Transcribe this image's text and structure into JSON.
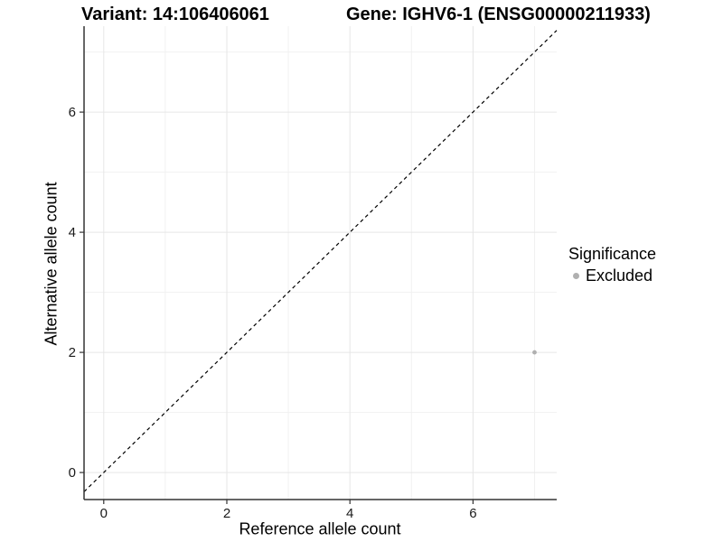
{
  "chart_data": {
    "type": "scatter",
    "titles": {
      "left": "Variant: 14:106406061",
      "right": "Gene: IGHV6-1 (ENSG00000211933)"
    },
    "xlabel": "Reference allele count",
    "ylabel": "Alternative allele count",
    "xlim": [
      -0.32,
      7.36
    ],
    "ylim": [
      -0.45,
      7.43
    ],
    "xticks": [
      0,
      2,
      4,
      6
    ],
    "yticks": [
      0,
      2,
      4,
      6
    ],
    "xminor_gridlines": [
      1,
      3,
      5,
      7
    ],
    "yminor_gridlines": [
      1,
      3,
      5,
      7
    ],
    "grid": "on",
    "reference_line": {
      "kind": "identity",
      "style": "dashed",
      "color": "#000000"
    },
    "series": [
      {
        "name": "Excluded",
        "color": "#b0b0b0",
        "points": [
          {
            "x": 7,
            "y": 2
          }
        ]
      }
    ],
    "legend": {
      "title": "Significance",
      "position": "right",
      "items": [
        {
          "label": "Excluded",
          "color": "#b0b0b0"
        }
      ]
    }
  },
  "colors": {
    "background": "#ffffff",
    "axis_line": "#333333",
    "tick_mark": "#333333",
    "tick_label": "#1a1a1a",
    "grid_major": "#e6e6e6",
    "grid_minor": "#f1f1f1",
    "title_text": "#000000",
    "point": "#b0b0b0"
  }
}
